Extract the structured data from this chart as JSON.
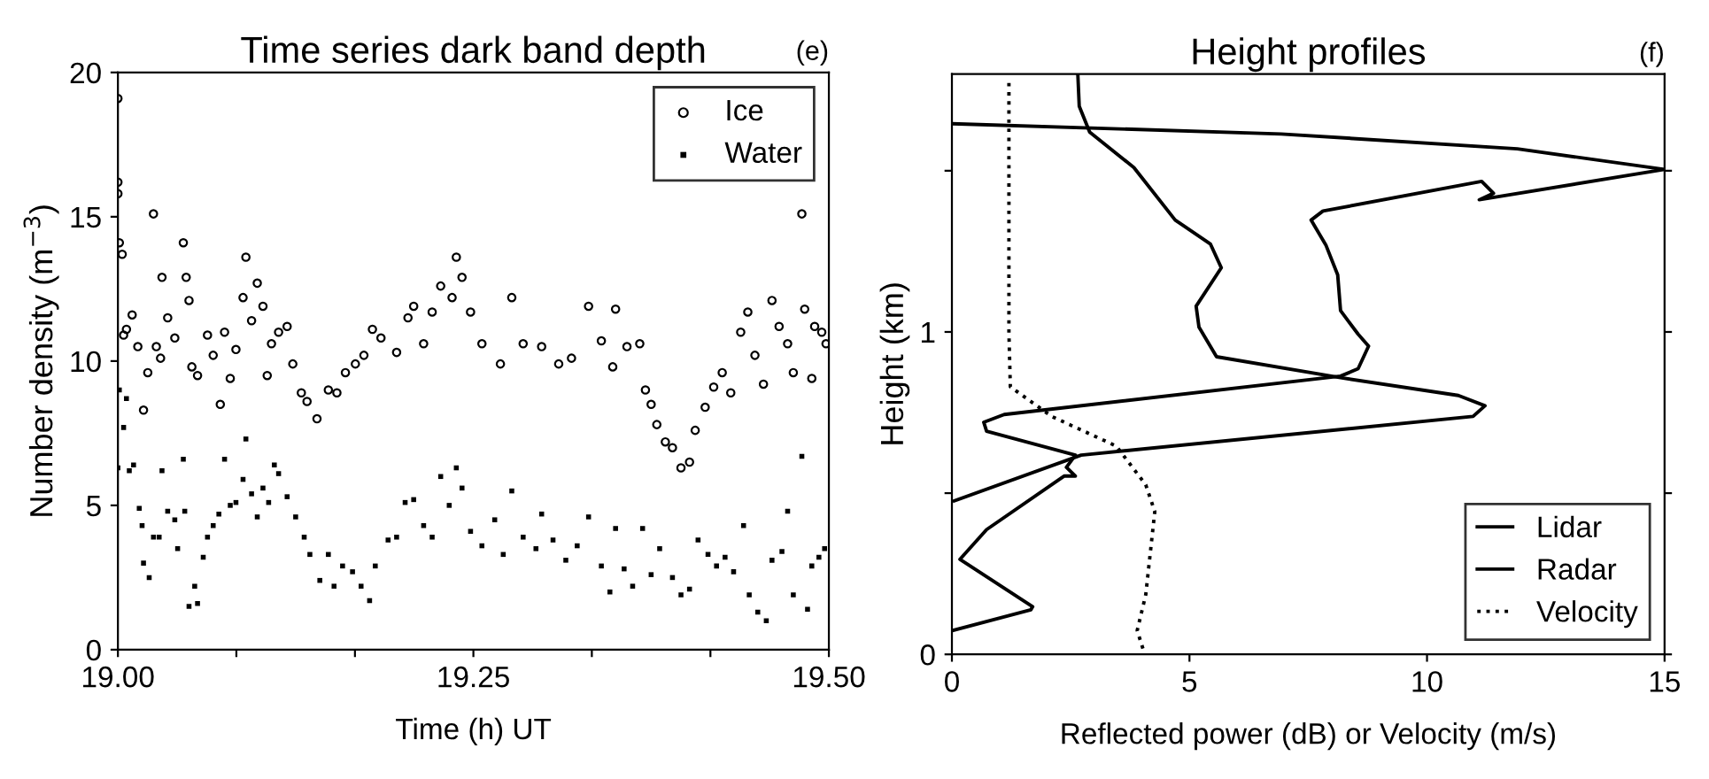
{
  "chart_data": [
    {
      "type": "scatter",
      "title": "Time series dark band depth",
      "annotations": [
        "(e)"
      ],
      "xlabel": "Time (h) UT",
      "ylabel": "Number density (m$^{−3}$)",
      "xlim": [
        19.0,
        19.5
      ],
      "ylim": [
        0,
        20
      ],
      "xticks": [
        {
          "value": 19.0,
          "label": "19.00"
        },
        {
          "value": 19.0833,
          "label": null
        },
        {
          "value": 19.1667,
          "label": null
        },
        {
          "value": 19.25,
          "label": "19.25"
        },
        {
          "value": 19.3333,
          "label": null
        },
        {
          "value": 19.4167,
          "label": null
        },
        {
          "value": 19.5,
          "label": "19.50"
        }
      ],
      "yticks": [
        0,
        5,
        10,
        15,
        20
      ],
      "legend": "top right",
      "grid": false,
      "series": [
        {
          "name": "Ice",
          "color": "#000000",
          "marker": "circle",
          "x": [
            19.0,
            19.0,
            19.0,
            19.001,
            19.003,
            19.004,
            19.006,
            19.01,
            19.014,
            19.018,
            19.021,
            19.025,
            19.027,
            19.03,
            19.031,
            19.035,
            19.04,
            19.046,
            19.048,
            19.05,
            19.052,
            19.056,
            19.063,
            19.067,
            19.072,
            19.075,
            19.079,
            19.083,
            19.088,
            19.09,
            19.094,
            19.098,
            19.102,
            19.105,
            19.108,
            19.113,
            19.119,
            19.123,
            19.129,
            19.133,
            19.14,
            19.148,
            19.154,
            19.16,
            19.167,
            19.173,
            19.179,
            19.185,
            19.196,
            19.204,
            19.208,
            19.215,
            19.221,
            19.227,
            19.235,
            19.238,
            19.242,
            19.248,
            19.256,
            19.269,
            19.277,
            19.285,
            19.298,
            19.31,
            19.319,
            19.331,
            19.34,
            19.348,
            19.35,
            19.358,
            19.367,
            19.371,
            19.375,
            19.379,
            19.385,
            19.39,
            19.396,
            19.402,
            19.406,
            19.413,
            19.419,
            19.425,
            19.431,
            19.438,
            19.443,
            19.448,
            19.454,
            19.46,
            19.465,
            19.471,
            19.475,
            19.481,
            19.483,
            19.488,
            19.49,
            19.495,
            19.498
          ],
          "values": [
            19.1,
            16.2,
            15.8,
            14.1,
            13.7,
            10.9,
            11.1,
            11.6,
            10.5,
            8.3,
            9.6,
            15.1,
            10.5,
            10.1,
            12.9,
            11.5,
            10.8,
            14.1,
            12.9,
            12.1,
            9.8,
            9.5,
            10.9,
            10.2,
            8.5,
            11.0,
            9.4,
            10.4,
            12.2,
            13.6,
            11.4,
            12.7,
            11.9,
            9.5,
            10.6,
            11.0,
            11.2,
            9.9,
            8.9,
            8.6,
            8.0,
            9.0,
            8.9,
            9.6,
            9.9,
            10.2,
            11.1,
            10.8,
            10.3,
            11.5,
            11.9,
            10.6,
            11.7,
            12.6,
            12.2,
            13.6,
            12.9,
            11.7,
            10.6,
            9.9,
            12.2,
            10.6,
            10.5,
            9.9,
            10.1,
            11.9,
            10.7,
            9.8,
            11.8,
            10.5,
            10.6,
            9.0,
            8.5,
            7.8,
            7.2,
            7.0,
            6.3,
            6.5,
            7.6,
            8.4,
            9.1,
            9.6,
            8.9,
            11.0,
            11.7,
            10.2,
            9.2,
            12.1,
            11.2,
            10.6,
            9.6,
            15.1,
            11.8,
            9.4,
            11.2,
            11.0,
            10.6
          ]
        },
        {
          "name": "Water",
          "color": "#000000",
          "marker": "square",
          "x": [
            19.0,
            19.001,
            19.004,
            19.006,
            19.008,
            19.011,
            19.015,
            19.017,
            19.018,
            19.022,
            19.025,
            19.029,
            19.031,
            19.035,
            19.04,
            19.042,
            19.046,
            19.047,
            19.05,
            19.054,
            19.056,
            19.06,
            19.063,
            19.067,
            19.071,
            19.075,
            19.079,
            19.083,
            19.088,
            19.09,
            19.094,
            19.098,
            19.102,
            19.106,
            19.11,
            19.113,
            19.119,
            19.125,
            19.131,
            19.135,
            19.142,
            19.148,
            19.152,
            19.158,
            19.165,
            19.171,
            19.177,
            19.181,
            19.19,
            19.196,
            19.202,
            19.208,
            19.215,
            19.221,
            19.227,
            19.233,
            19.238,
            19.242,
            19.248,
            19.256,
            19.265,
            19.271,
            19.277,
            19.285,
            19.294,
            19.298,
            19.306,
            19.315,
            19.323,
            19.331,
            19.34,
            19.346,
            19.35,
            19.356,
            19.362,
            19.369,
            19.375,
            19.381,
            19.39,
            19.396,
            19.402,
            19.408,
            19.415,
            19.421,
            19.427,
            19.433,
            19.44,
            19.444,
            19.45,
            19.456,
            19.46,
            19.467,
            19.471,
            19.475,
            19.481,
            19.485,
            19.488,
            19.493,
            19.497
          ],
          "values": [
            6.3,
            9.0,
            7.7,
            8.7,
            6.2,
            6.4,
            4.9,
            4.3,
            3.0,
            2.5,
            3.9,
            3.9,
            6.2,
            4.8,
            4.5,
            3.5,
            6.6,
            4.8,
            1.5,
            2.2,
            1.6,
            3.2,
            3.9,
            4.3,
            4.7,
            6.6,
            5.0,
            5.1,
            5.9,
            7.3,
            5.4,
            4.6,
            5.6,
            5.1,
            6.4,
            6.1,
            5.3,
            4.6,
            3.9,
            3.3,
            2.4,
            3.3,
            2.2,
            2.9,
            2.7,
            2.2,
            1.7,
            2.9,
            3.8,
            3.9,
            5.1,
            5.2,
            4.3,
            3.9,
            6.0,
            5.0,
            6.3,
            5.6,
            4.1,
            3.6,
            4.5,
            3.3,
            5.5,
            3.9,
            3.5,
            4.7,
            3.8,
            3.1,
            3.6,
            4.6,
            2.9,
            2.0,
            4.2,
            2.8,
            2.2,
            4.2,
            2.6,
            3.5,
            2.5,
            1.9,
            2.1,
            3.8,
            3.3,
            2.9,
            3.2,
            2.7,
            4.3,
            1.9,
            1.3,
            1.0,
            3.1,
            3.4,
            4.8,
            1.9,
            6.7,
            1.4,
            2.9,
            3.2,
            3.5
          ]
        }
      ]
    },
    {
      "type": "line",
      "title": "Height profiles",
      "annotations": [
        "(f)"
      ],
      "xlabel": "Reflected power (dB) or Velocity (m/s)",
      "ylabel": "Height (km)",
      "xlim": [
        0,
        15
      ],
      "ylim": [
        0,
        1.8
      ],
      "xticks": [
        0,
        5,
        10,
        15
      ],
      "yticks": [
        0,
        {
          "value": 0.5,
          "label": null
        },
        1,
        {
          "value": 1.5,
          "label": null
        }
      ],
      "legend": "bottom right",
      "grid": false,
      "marker": "none",
      "series": [
        {
          "name": "Lidar",
          "color": "#000000",
          "line_style": "solid",
          "x": [
            0.02,
            1.66,
            1.7,
            0.17,
            0.73,
            2.36,
            2.6,
            2.41,
            2.6,
            0.73,
            0.67,
            1.1,
            8.18,
            8.55,
            8.77,
            8.55,
            8.18,
            8.12,
            7.87,
            7.56,
            7.81,
            11.15,
            11.4,
            11.1,
            15.0,
            11.9,
            6.93,
            0.0
          ],
          "values": [
            0.074,
            0.138,
            0.148,
            0.295,
            0.387,
            0.553,
            0.553,
            0.58,
            0.618,
            0.692,
            0.72,
            0.744,
            0.863,
            0.886,
            0.956,
            0.993,
            1.066,
            1.177,
            1.27,
            1.347,
            1.375,
            1.467,
            1.43,
            1.41,
            1.504,
            1.568,
            1.614,
            1.646
          ]
        },
        {
          "name": "Radar",
          "color": "#000000",
          "line_style": "solid",
          "x": [
            0.05,
            2.72,
            10.97,
            11.22,
            10.66,
            8.18,
            5.57,
            5.2,
            5.14,
            5.67,
            5.44,
            4.7,
            3.83,
            2.9,
            2.68,
            2.65
          ],
          "values": [
            0.476,
            0.618,
            0.738,
            0.771,
            0.803,
            0.858,
            0.923,
            1.015,
            1.08,
            1.199,
            1.273,
            1.347,
            1.51,
            1.62,
            1.7,
            1.8
          ]
        },
        {
          "name": "Velocity",
          "color": "#000000",
          "line_style": "dotted",
          "x": [
            4.02,
            3.9,
            4.08,
            4.27,
            4.08,
            3.46,
            2.1,
            1.23,
            1.2,
            1.2,
            1.2
          ],
          "values": [
            0.018,
            0.074,
            0.185,
            0.443,
            0.526,
            0.646,
            0.738,
            0.83,
            0.996,
            1.55,
            1.79
          ]
        }
      ]
    }
  ]
}
